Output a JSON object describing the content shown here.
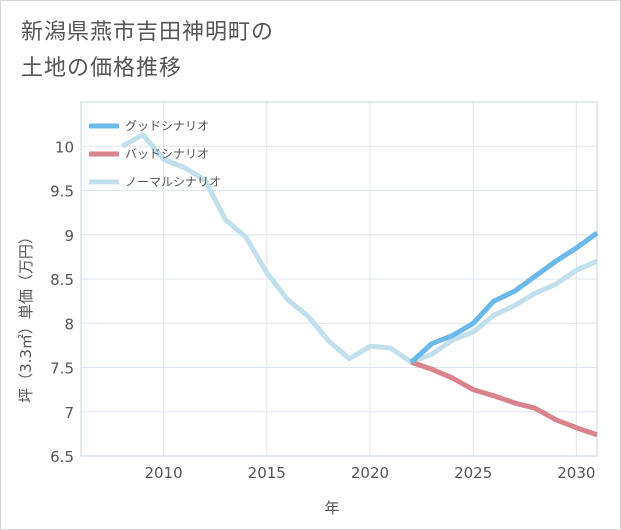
{
  "title": {
    "line1": "新潟県燕市吉田神明町の",
    "line2": "土地の価格推移"
  },
  "chart_data": {
    "type": "line",
    "title": "新潟県燕市吉田神明町の土地の価格推移",
    "xlabel": "年",
    "ylabel": "坪（3.3㎡）単価（万円）",
    "xlim": [
      2006,
      2031
    ],
    "ylim": [
      6.5,
      10.5
    ],
    "x_ticks": [
      2010,
      2015,
      2020,
      2025,
      2030
    ],
    "y_ticks": [
      6.5,
      7,
      7.5,
      8,
      8.5,
      9,
      9.5,
      10
    ],
    "grid": true,
    "legend_position": "top-left",
    "series": [
      {
        "name": "グッドシナリオ",
        "color": "#6bb8ea",
        "x": [
          2022,
          2023,
          2024,
          2025,
          2026,
          2027,
          2028,
          2029,
          2030,
          2031
        ],
        "y": [
          7.56,
          7.77,
          7.86,
          8.0,
          8.25,
          8.36,
          8.53,
          8.7,
          8.85,
          9.02
        ]
      },
      {
        "name": "バッドシナリオ",
        "color": "#d9838d",
        "x": [
          2022,
          2023,
          2024,
          2025,
          2026,
          2027,
          2028,
          2029,
          2030,
          2031
        ],
        "y": [
          7.56,
          7.48,
          7.38,
          7.25,
          7.18,
          7.1,
          7.04,
          6.91,
          6.82,
          6.74
        ]
      },
      {
        "name": "ノーマルシナリオ",
        "color": "#c2dfed",
        "x": [
          2008,
          2009,
          2010,
          2011,
          2012,
          2013,
          2014,
          2015,
          2016,
          2017,
          2018,
          2019,
          2020,
          2021,
          2022,
          2023,
          2024,
          2025,
          2026,
          2027,
          2028,
          2029,
          2030,
          2031
        ],
        "y": [
          10.0,
          10.13,
          9.85,
          9.76,
          9.62,
          9.17,
          8.97,
          8.57,
          8.27,
          8.08,
          7.8,
          7.6,
          7.74,
          7.72,
          7.56,
          7.65,
          7.81,
          7.9,
          8.09,
          8.2,
          8.34,
          8.44,
          8.6,
          8.7
        ]
      }
    ]
  }
}
